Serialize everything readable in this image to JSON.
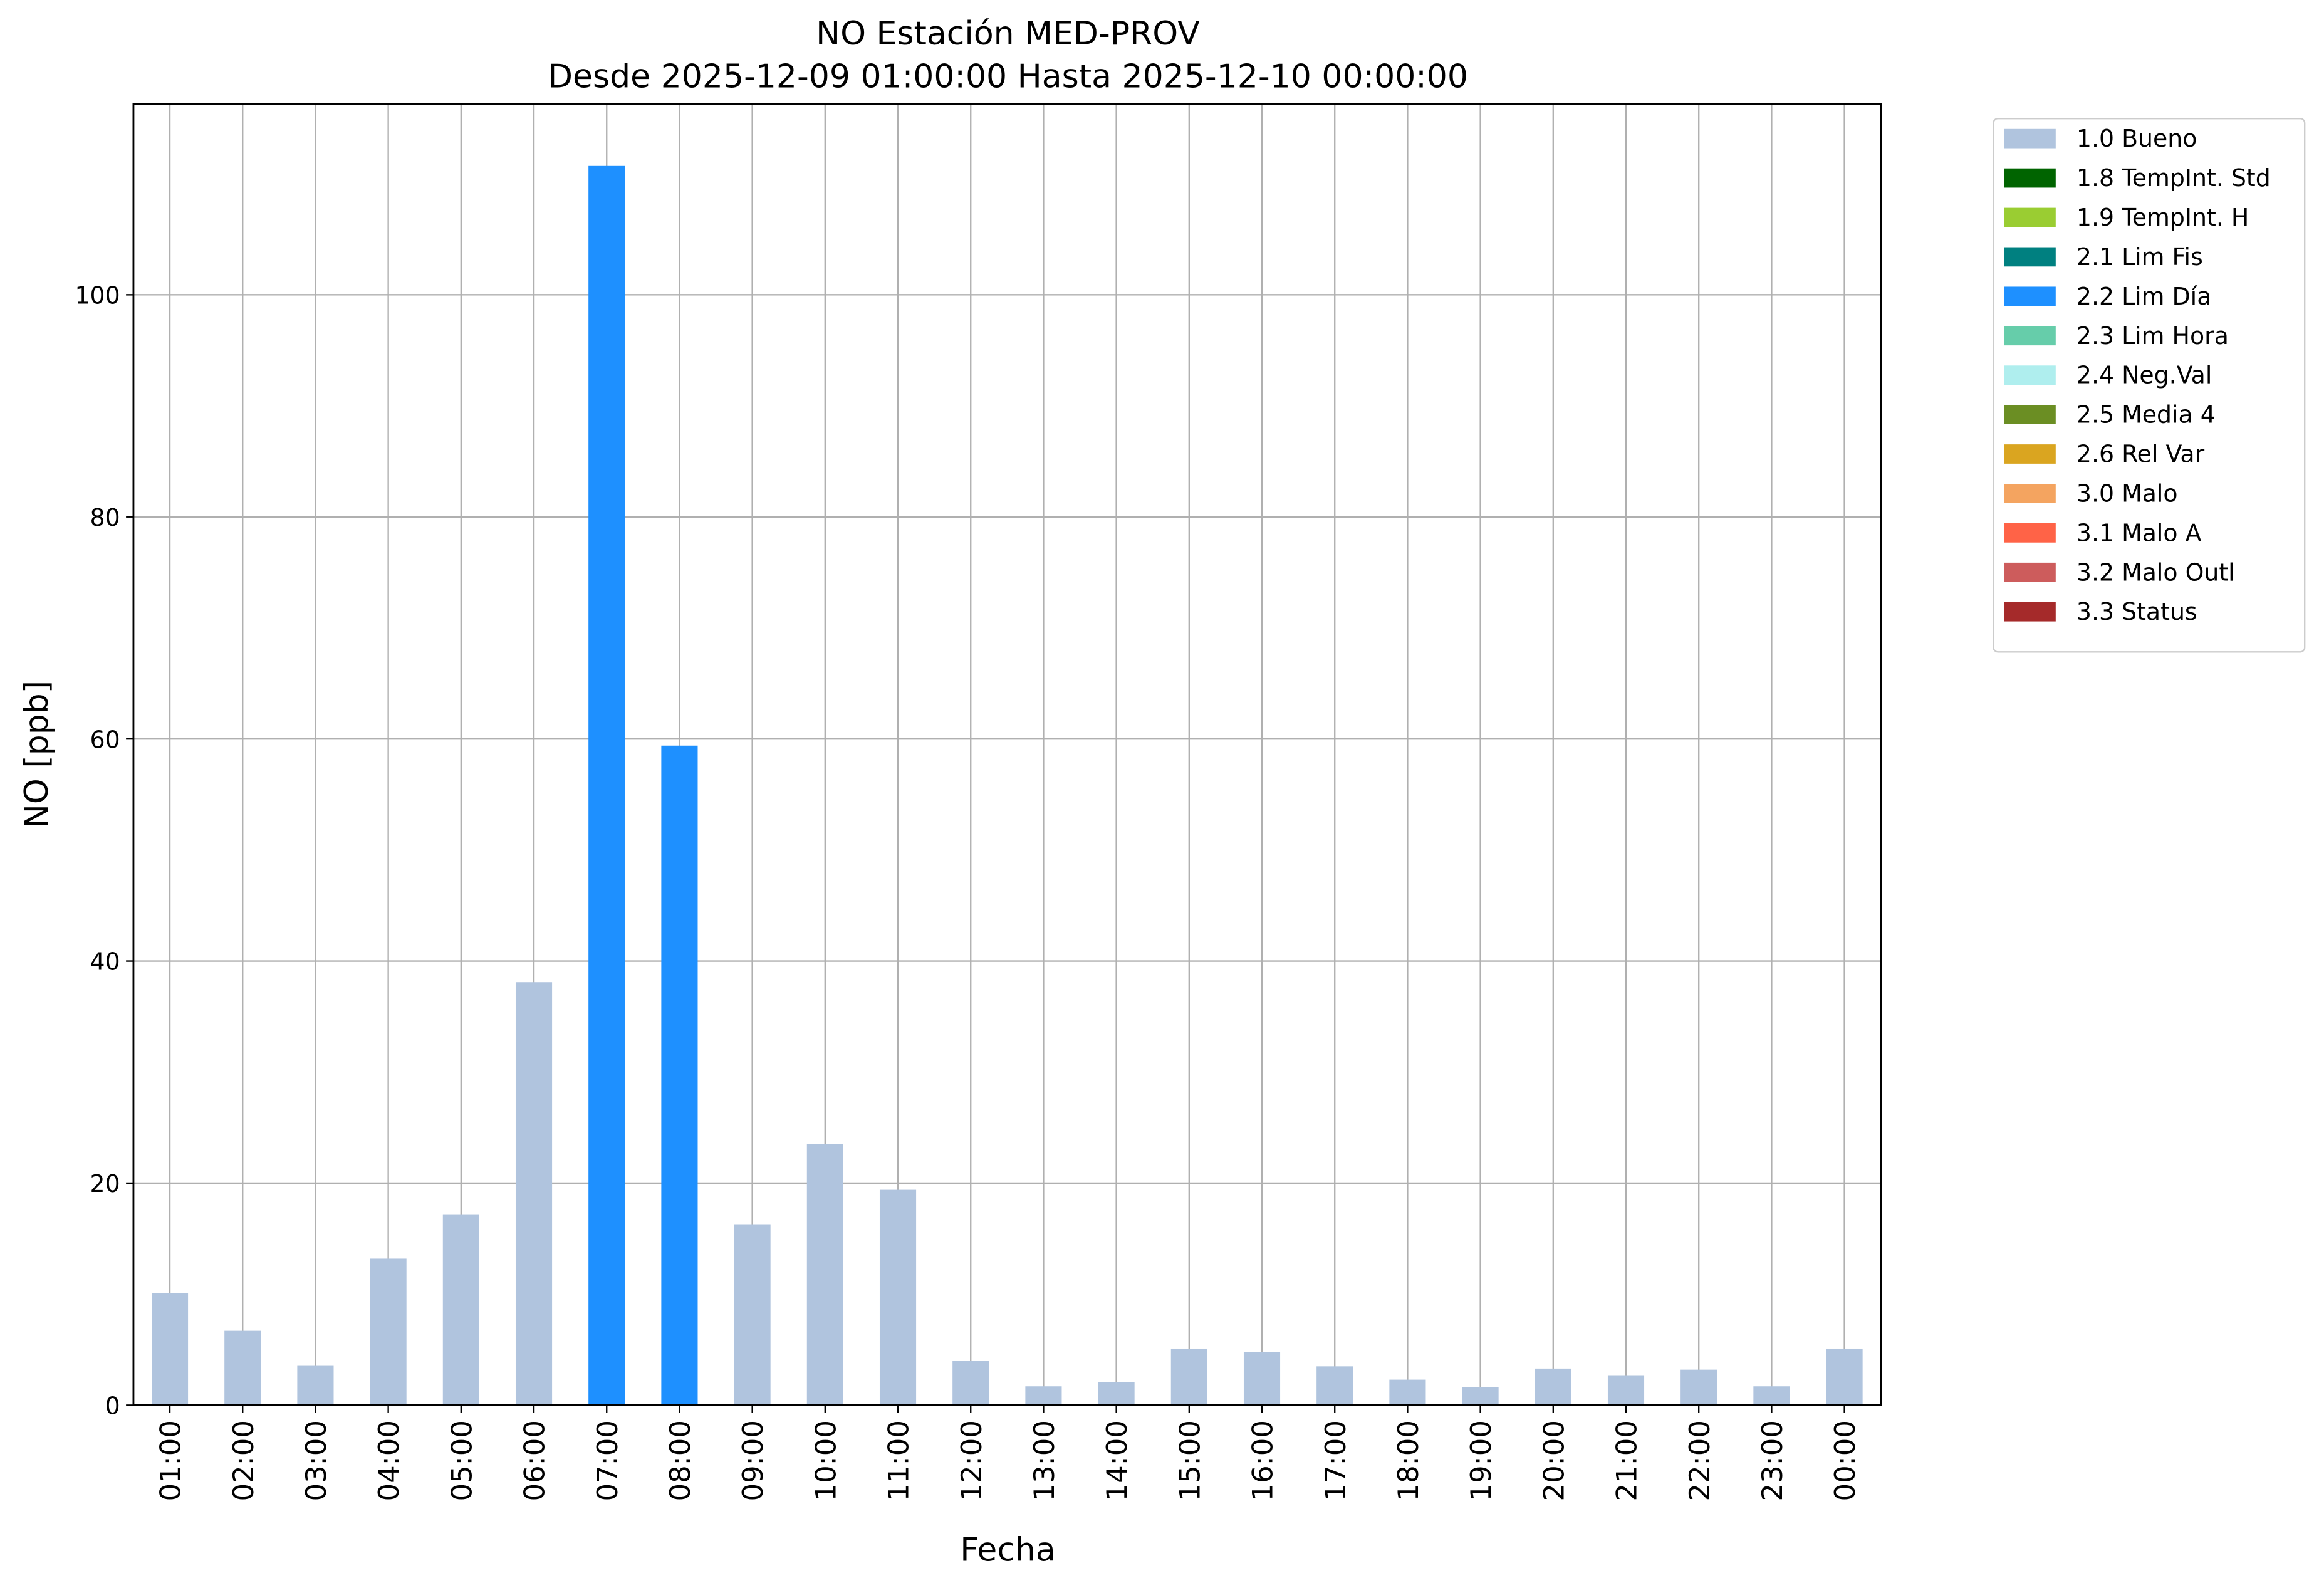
{
  "chart_data": {
    "type": "bar",
    "stacked": true,
    "title": "NO Estación MED-PROV",
    "subtitle": "Desde 2025-12-09 01:00:00 Hasta 2025-12-10 00:00:00",
    "x_label": "Fecha",
    "y_label": "NO [ppb]",
    "categories": [
      "01:00",
      "02:00",
      "03:00",
      "04:00",
      "05:00",
      "06:00",
      "07:00",
      "08:00",
      "09:00",
      "10:00",
      "11:00",
      "12:00",
      "13:00",
      "14:00",
      "15:00",
      "16:00",
      "17:00",
      "18:00",
      "19:00",
      "20:00",
      "21:00",
      "22:00",
      "23:00",
      "00:00"
    ],
    "series": [
      {
        "name": "1.0 Bueno",
        "color": "#b0c4de",
        "values": [
          10.1,
          6.7,
          3.6,
          13.2,
          17.2,
          38.1,
          null,
          null,
          16.3,
          23.5,
          19.4,
          4.0,
          1.7,
          2.1,
          5.1,
          4.8,
          3.5,
          2.3,
          1.6,
          3.3,
          2.7,
          3.2,
          1.7,
          5.1
        ]
      },
      {
        "name": "1.8 TempInt. Std",
        "color": "#006400",
        "values": [
          null,
          null,
          null,
          null,
          null,
          null,
          null,
          null,
          null,
          null,
          null,
          null,
          null,
          null,
          null,
          null,
          null,
          null,
          null,
          null,
          null,
          null,
          null,
          null
        ]
      },
      {
        "name": "1.9 TempInt. H",
        "color": "#9acd32",
        "values": [
          null,
          null,
          null,
          null,
          null,
          null,
          null,
          null,
          null,
          null,
          null,
          null,
          null,
          null,
          null,
          null,
          null,
          null,
          null,
          null,
          null,
          null,
          null,
          null
        ]
      },
      {
        "name": "2.1 Lim Fis",
        "color": "#008080",
        "values": [
          null,
          null,
          null,
          null,
          null,
          null,
          null,
          null,
          null,
          null,
          null,
          null,
          null,
          null,
          null,
          null,
          null,
          null,
          null,
          null,
          null,
          null,
          null,
          null
        ]
      },
      {
        "name": "2.2 Lim Día",
        "color": "#1e90ff",
        "values": [
          null,
          null,
          null,
          null,
          null,
          null,
          111.6,
          59.4,
          null,
          null,
          null,
          null,
          null,
          null,
          null,
          null,
          null,
          null,
          null,
          null,
          null,
          null,
          null,
          null
        ]
      },
      {
        "name": "2.3 Lim Hora",
        "color": "#66cdaa",
        "values": [
          null,
          null,
          null,
          null,
          null,
          null,
          null,
          null,
          null,
          null,
          null,
          null,
          null,
          null,
          null,
          null,
          null,
          null,
          null,
          null,
          null,
          null,
          null,
          null
        ]
      },
      {
        "name": "2.4 Neg.Val",
        "color": "#afeeee",
        "values": [
          null,
          null,
          null,
          null,
          null,
          null,
          null,
          null,
          null,
          null,
          null,
          null,
          null,
          null,
          null,
          null,
          null,
          null,
          null,
          null,
          null,
          null,
          null,
          null
        ]
      },
      {
        "name": "2.5 Media 4",
        "color": "#6b8e23",
        "values": [
          null,
          null,
          null,
          null,
          null,
          null,
          null,
          null,
          null,
          null,
          null,
          null,
          null,
          null,
          null,
          null,
          null,
          null,
          null,
          null,
          null,
          null,
          null,
          null
        ]
      },
      {
        "name": "2.6 Rel Var",
        "color": "#daa520",
        "values": [
          null,
          null,
          null,
          null,
          null,
          null,
          null,
          null,
          null,
          null,
          null,
          null,
          null,
          null,
          null,
          null,
          null,
          null,
          null,
          null,
          null,
          null,
          null,
          null
        ]
      },
      {
        "name": "3.0 Malo",
        "color": "#f4a460",
        "values": [
          null,
          null,
          null,
          null,
          null,
          null,
          null,
          null,
          null,
          null,
          null,
          null,
          null,
          null,
          null,
          null,
          null,
          null,
          null,
          null,
          null,
          null,
          null,
          null
        ]
      },
      {
        "name": "3.1 Malo A",
        "color": "#ff6347",
        "values": [
          null,
          null,
          null,
          null,
          null,
          null,
          null,
          null,
          null,
          null,
          null,
          null,
          null,
          null,
          null,
          null,
          null,
          null,
          null,
          null,
          null,
          null,
          null,
          null
        ]
      },
      {
        "name": "3.2 Malo Outl",
        "color": "#cd5c5c",
        "values": [
          null,
          null,
          null,
          null,
          null,
          null,
          null,
          null,
          null,
          null,
          null,
          null,
          null,
          null,
          null,
          null,
          null,
          null,
          null,
          null,
          null,
          null,
          null,
          null
        ]
      },
      {
        "name": "3.3 Status",
        "color": "#a52a2a",
        "values": [
          null,
          null,
          null,
          null,
          null,
          null,
          null,
          null,
          null,
          null,
          null,
          null,
          null,
          null,
          null,
          null,
          null,
          null,
          null,
          null,
          null,
          null,
          null,
          null
        ]
      }
    ],
    "ylim": [
      0,
      117.2
    ],
    "yticks": [
      0,
      20,
      40,
      60,
      80,
      100
    ],
    "grid": true,
    "legend": "outside right"
  }
}
